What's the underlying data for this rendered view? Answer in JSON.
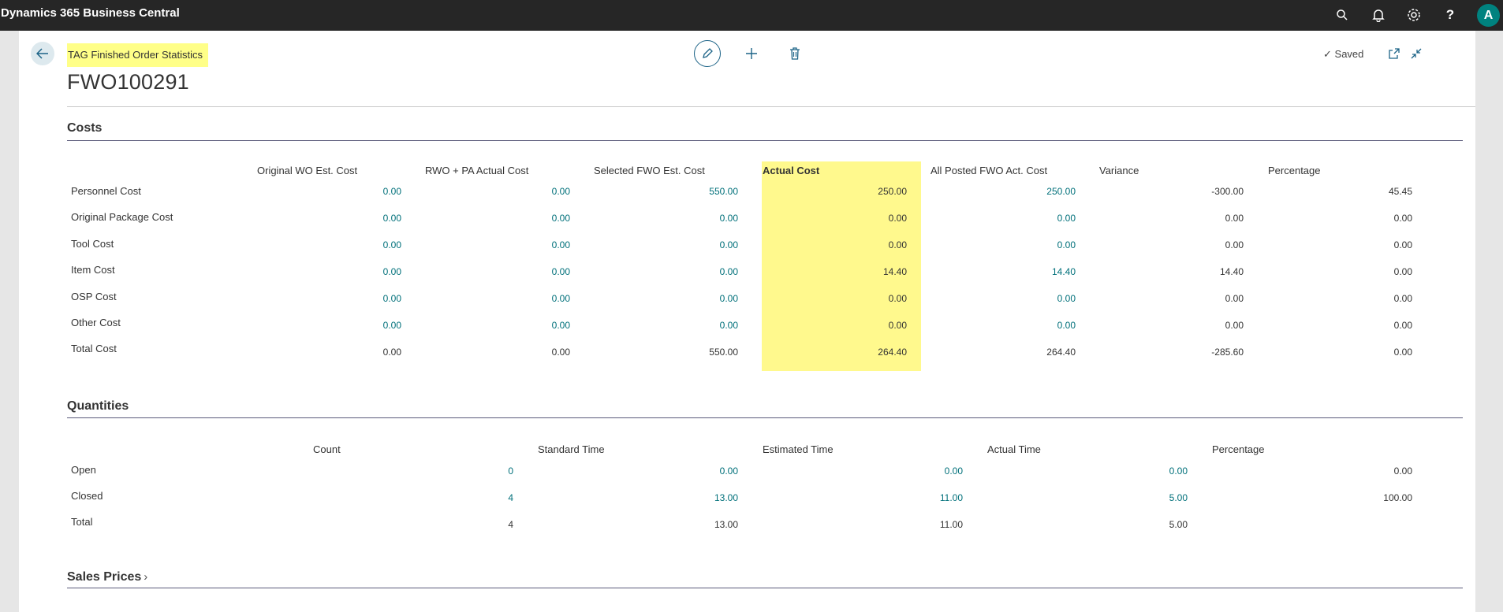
{
  "app": {
    "title": "Dynamics 365 Business Central"
  },
  "topbar": {
    "icons": [
      "search-icon",
      "bell-icon",
      "gear-icon",
      "help-icon"
    ],
    "avatar_letter": "A"
  },
  "header": {
    "caption": "TAG Finished Order Statistics",
    "record_no": "FWO100291",
    "status": "Saved"
  },
  "costs": {
    "title": "Costs",
    "columns": [
      "Original WO Est. Cost",
      "RWO + PA Actual Cost",
      "Selected FWO Est. Cost",
      "Actual Cost",
      "All Posted FWO Act. Cost",
      "Variance",
      "Percentage"
    ],
    "rows": [
      {
        "label": "Personnel Cost",
        "values": [
          "0.00",
          "0.00",
          "550.00",
          "250.00",
          "250.00",
          "-300.00",
          "45.45"
        ]
      },
      {
        "label": "Original Package Cost",
        "values": [
          "0.00",
          "0.00",
          "0.00",
          "0.00",
          "0.00",
          "0.00",
          "0.00"
        ]
      },
      {
        "label": "Tool Cost",
        "values": [
          "0.00",
          "0.00",
          "0.00",
          "0.00",
          "0.00",
          "0.00",
          "0.00"
        ]
      },
      {
        "label": "Item Cost",
        "values": [
          "0.00",
          "0.00",
          "0.00",
          "14.40",
          "14.40",
          "14.40",
          "0.00"
        ]
      },
      {
        "label": "OSP Cost",
        "values": [
          "0.00",
          "0.00",
          "0.00",
          "0.00",
          "0.00",
          "0.00",
          "0.00"
        ]
      },
      {
        "label": "Other Cost",
        "values": [
          "0.00",
          "0.00",
          "0.00",
          "0.00",
          "0.00",
          "0.00",
          "0.00"
        ]
      },
      {
        "label": "Total Cost",
        "values": [
          "0.00",
          "0.00",
          "550.00",
          "264.40",
          "264.40",
          "-285.60",
          "0.00"
        ]
      }
    ]
  },
  "quantities": {
    "title": "Quantities",
    "columns": [
      "Count",
      "Standard Time",
      "Estimated Time",
      "Actual Time",
      "Percentage"
    ],
    "rows": [
      {
        "label": "Open",
        "values": [
          "0",
          "0.00",
          "0.00",
          "0.00",
          "0.00"
        ]
      },
      {
        "label": "Closed",
        "values": [
          "4",
          "13.00",
          "11.00",
          "5.00",
          "100.00"
        ]
      },
      {
        "label": "Total",
        "values": [
          "4",
          "13.00",
          "11.00",
          "5.00",
          ""
        ]
      }
    ]
  },
  "sales_prices": {
    "title": "Sales Prices"
  },
  "colors": {
    "link": "#00707a",
    "highlight": "#fff98d",
    "topbar": "#262626"
  }
}
